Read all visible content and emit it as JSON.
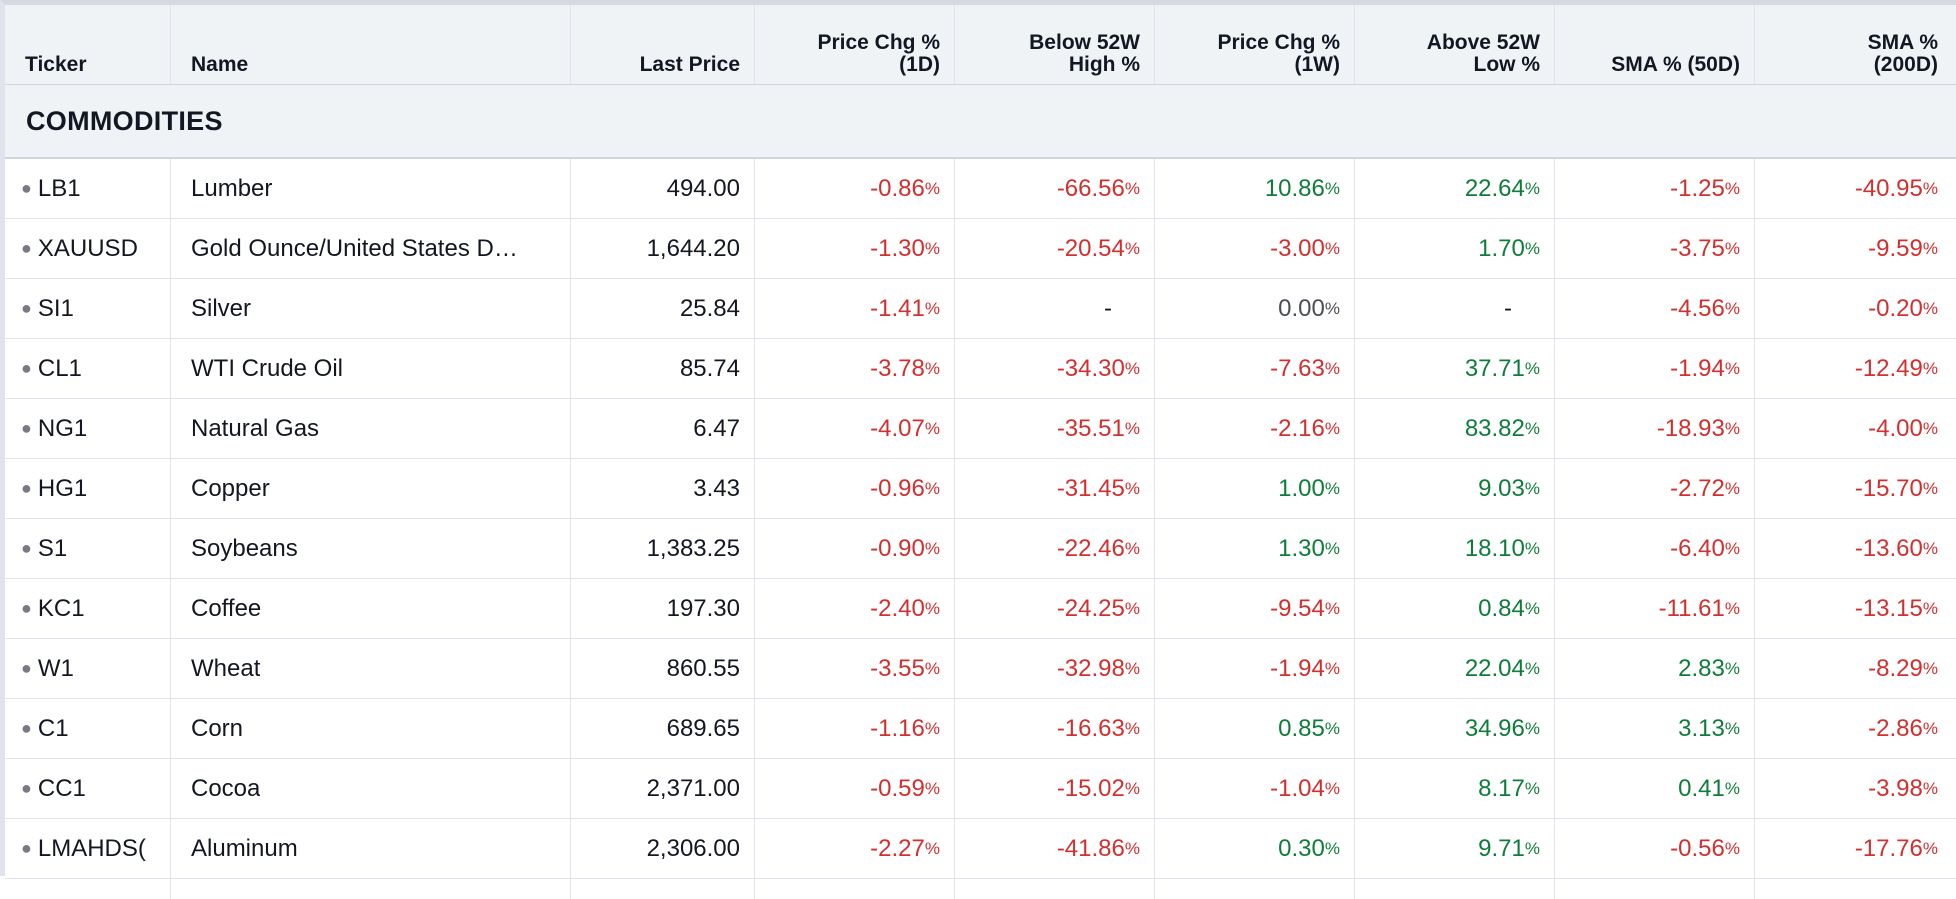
{
  "header": {
    "ticker": "Ticker",
    "name": "Name",
    "last_price": "Last Price",
    "chg_1d": "Price Chg %\n(1D)",
    "below_52w_high": "Below 52W\nHigh %",
    "chg_1w": "Price Chg %\n(1W)",
    "above_52w_low": "Above 52W\nLow %",
    "sma_50d": "SMA % (50D)",
    "sma_200d": "SMA %\n(200D)"
  },
  "group": {
    "label": "COMMODITIES"
  },
  "percent_sign": "%",
  "colors": {
    "negative": "#d32f2f",
    "positive": "#0f7d3a",
    "neutral": "#4a4e59"
  },
  "rows": [
    {
      "ticker": "LB1",
      "name": "Lumber",
      "last": "494.00",
      "c1d": "-0.86",
      "s1d": "neg",
      "b52h": "-66.56",
      "sb52h": "neg",
      "c1w": "10.86",
      "s1w": "pos",
      "a52l": "22.64",
      "sa52l": "pos",
      "sma50": "-1.25",
      "s50": "neg",
      "sma200": "-40.95",
      "s200": "neg"
    },
    {
      "ticker": "XAUUSD",
      "name": "Gold Ounce/United States D…",
      "last": "1,644.20",
      "c1d": "-1.30",
      "s1d": "neg",
      "b52h": "-20.54",
      "sb52h": "neg",
      "c1w": "-3.00",
      "s1w": "neg",
      "a52l": "1.70",
      "sa52l": "pos",
      "sma50": "-3.75",
      "s50": "neg",
      "sma200": "-9.59",
      "s200": "neg"
    },
    {
      "ticker": "SI1",
      "name": "Silver",
      "last": "25.84",
      "c1d": "-1.41",
      "s1d": "neg",
      "b52h": "-",
      "sb52h": "dash",
      "c1w": "0.00",
      "s1w": "neu",
      "a52l": "-",
      "sa52l": "dash",
      "sma50": "-4.56",
      "s50": "neg",
      "sma200": "-0.20",
      "s200": "neg"
    },
    {
      "ticker": "CL1",
      "name": "WTI Crude Oil",
      "last": "85.74",
      "c1d": "-3.78",
      "s1d": "neg",
      "b52h": "-34.30",
      "sb52h": "neg",
      "c1w": "-7.63",
      "s1w": "neg",
      "a52l": "37.71",
      "sa52l": "pos",
      "sma50": "-1.94",
      "s50": "neg",
      "sma200": "-12.49",
      "s200": "neg"
    },
    {
      "ticker": "NG1",
      "name": "Natural Gas",
      "last": "6.47",
      "c1d": "-4.07",
      "s1d": "neg",
      "b52h": "-35.51",
      "sb52h": "neg",
      "c1w": "-2.16",
      "s1w": "neg",
      "a52l": "83.82",
      "sa52l": "pos",
      "sma50": "-18.93",
      "s50": "neg",
      "sma200": "-4.00",
      "s200": "neg"
    },
    {
      "ticker": "HG1",
      "name": "Copper",
      "last": "3.43",
      "c1d": "-0.96",
      "s1d": "neg",
      "b52h": "-31.45",
      "sb52h": "neg",
      "c1w": "1.00",
      "s1w": "pos",
      "a52l": "9.03",
      "sa52l": "pos",
      "sma50": "-2.72",
      "s50": "neg",
      "sma200": "-15.70",
      "s200": "neg"
    },
    {
      "ticker": "S1",
      "name": "Soybeans",
      "last": "1,383.25",
      "c1d": "-0.90",
      "s1d": "neg",
      "b52h": "-22.46",
      "sb52h": "neg",
      "c1w": "1.30",
      "s1w": "pos",
      "a52l": "18.10",
      "sa52l": "pos",
      "sma50": "-6.40",
      "s50": "neg",
      "sma200": "-13.60",
      "s200": "neg"
    },
    {
      "ticker": "KC1",
      "name": "Coffee",
      "last": "197.30",
      "c1d": "-2.40",
      "s1d": "neg",
      "b52h": "-24.25",
      "sb52h": "neg",
      "c1w": "-9.54",
      "s1w": "neg",
      "a52l": "0.84",
      "sa52l": "pos",
      "sma50": "-11.61",
      "s50": "neg",
      "sma200": "-13.15",
      "s200": "neg"
    },
    {
      "ticker": "W1",
      "name": "Wheat",
      "last": "860.55",
      "c1d": "-3.55",
      "s1d": "neg",
      "b52h": "-32.98",
      "sb52h": "neg",
      "c1w": "-1.94",
      "s1w": "neg",
      "a52l": "22.04",
      "sa52l": "pos",
      "sma50": "2.83",
      "s50": "pos",
      "sma200": "-8.29",
      "s200": "neg"
    },
    {
      "ticker": "C1",
      "name": "Corn",
      "last": "689.65",
      "c1d": "-1.16",
      "s1d": "neg",
      "b52h": "-16.63",
      "sb52h": "neg",
      "c1w": "0.85",
      "s1w": "pos",
      "a52l": "34.96",
      "sa52l": "pos",
      "sma50": "3.13",
      "s50": "pos",
      "sma200": "-2.86",
      "s200": "neg"
    },
    {
      "ticker": "CC1",
      "name": "Cocoa",
      "last": "2,371.00",
      "c1d": "-0.59",
      "s1d": "neg",
      "b52h": "-15.02",
      "sb52h": "neg",
      "c1w": "-1.04",
      "s1w": "neg",
      "a52l": "8.17",
      "sa52l": "pos",
      "sma50": "0.41",
      "s50": "pos",
      "sma200": "-3.98",
      "s200": "neg"
    },
    {
      "ticker": "LMAHDS(",
      "name": "Aluminum",
      "last": "2,306.00",
      "c1d": "-2.27",
      "s1d": "neg",
      "b52h": "-41.86",
      "sb52h": "neg",
      "c1w": "0.30",
      "s1w": "pos",
      "a52l": "9.71",
      "sa52l": "pos",
      "sma50": "-0.56",
      "s50": "neg",
      "sma200": "-17.76",
      "s200": "neg"
    }
  ]
}
